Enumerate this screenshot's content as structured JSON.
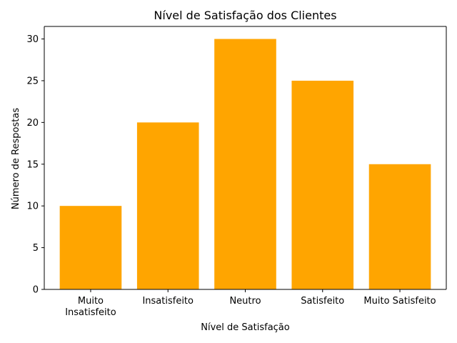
{
  "chart_data": {
    "type": "bar",
    "title": "Nível de Satisfação dos Clientes",
    "xlabel": "Nível de Satisfação",
    "ylabel": "Número de Respostas",
    "categories": [
      "Muito\nInsatisfeito",
      "Insatisfeito",
      "Neutro",
      "Satisfeito",
      "Muito Satisfeito"
    ],
    "values": [
      10,
      20,
      30,
      25,
      15
    ],
    "ylim": [
      0,
      31.5
    ],
    "yticks": [
      0,
      5,
      10,
      15,
      20,
      25,
      30
    ],
    "bar_color": "#FFA500",
    "grid": false,
    "legend": "none"
  }
}
